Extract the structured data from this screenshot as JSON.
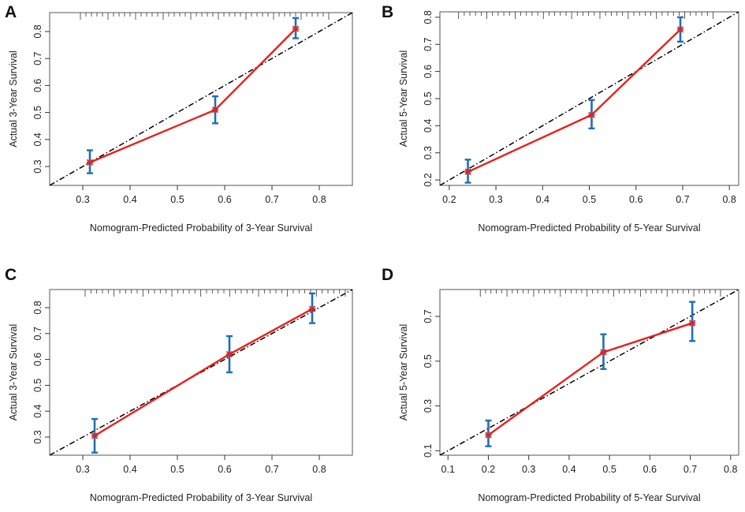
{
  "colors": {
    "fit_line": "#e8201c",
    "marker": "#e8201c",
    "error_bar": "#1f6fb5",
    "ideal_line": "#000000",
    "frame": "#555555"
  },
  "chart_data": [
    {
      "panel": "A",
      "type": "line",
      "title": "",
      "xlabel": "Nomogram-Predicted Probability of 3-Year Survival",
      "ylabel": "Actual 3-Year Survival",
      "xlim": [
        0.23,
        0.87
      ],
      "ylim": [
        0.23,
        0.87
      ],
      "x_ticks": [
        "0.3",
        "0.4",
        "0.5",
        "0.6",
        "0.7",
        "0.8"
      ],
      "y_ticks": [
        "0.3",
        "0.4",
        "0.5",
        "0.6",
        "0.7",
        "0.8"
      ],
      "x_tick_values": [
        0.3,
        0.4,
        0.5,
        0.6,
        0.7,
        0.8
      ],
      "y_tick_values": [
        0.3,
        0.4,
        0.5,
        0.6,
        0.7,
        0.8
      ],
      "ideal_line": true,
      "points": [
        {
          "x": 0.315,
          "y": 0.315,
          "lo": 0.275,
          "hi": 0.36
        },
        {
          "x": 0.58,
          "y": 0.51,
          "lo": 0.46,
          "hi": 0.56
        },
        {
          "x": 0.75,
          "y": 0.81,
          "lo": 0.775,
          "hi": 0.85
        }
      ]
    },
    {
      "panel": "B",
      "type": "line",
      "title": "",
      "xlabel": "Nomogram-Predicted Probability of 5-Year Survival",
      "ylabel": "Actual 5-Year Survival",
      "xlim": [
        0.18,
        0.82
      ],
      "ylim": [
        0.18,
        0.82
      ],
      "x_ticks": [
        "0.2",
        "0.3",
        "0.4",
        "0.5",
        "0.6",
        "0.7",
        "0.8"
      ],
      "y_ticks": [
        "0.2",
        "0.3",
        "0.4",
        "0.5",
        "0.6",
        "0.7",
        "0.8"
      ],
      "x_tick_values": [
        0.2,
        0.3,
        0.4,
        0.5,
        0.6,
        0.7,
        0.8
      ],
      "y_tick_values": [
        0.2,
        0.3,
        0.4,
        0.5,
        0.6,
        0.7,
        0.8
      ],
      "ideal_line": true,
      "points": [
        {
          "x": 0.24,
          "y": 0.23,
          "lo": 0.19,
          "hi": 0.275
        },
        {
          "x": 0.505,
          "y": 0.44,
          "lo": 0.39,
          "hi": 0.495
        },
        {
          "x": 0.695,
          "y": 0.755,
          "lo": 0.71,
          "hi": 0.8
        }
      ]
    },
    {
      "panel": "C",
      "type": "line",
      "title": "",
      "xlabel": "Nomogram-Predicted Probability of 3-Year Survival",
      "ylabel": "Actual 3-Year Survival",
      "xlim": [
        0.23,
        0.87
      ],
      "ylim": [
        0.23,
        0.87
      ],
      "x_ticks": [
        "0.3",
        "0.4",
        "0.5",
        "0.6",
        "0.7",
        "0.8"
      ],
      "y_ticks": [
        "0.3",
        "0.4",
        "0.5",
        "0.6",
        "0.7",
        "0.8"
      ],
      "x_tick_values": [
        0.3,
        0.4,
        0.5,
        0.6,
        0.7,
        0.8
      ],
      "y_tick_values": [
        0.3,
        0.4,
        0.5,
        0.6,
        0.7,
        0.8
      ],
      "ideal_line": true,
      "points": [
        {
          "x": 0.325,
          "y": 0.305,
          "lo": 0.24,
          "hi": 0.37
        },
        {
          "x": 0.61,
          "y": 0.62,
          "lo": 0.55,
          "hi": 0.69
        },
        {
          "x": 0.785,
          "y": 0.795,
          "lo": 0.74,
          "hi": 0.855
        }
      ]
    },
    {
      "panel": "D",
      "type": "line",
      "title": "",
      "xlabel": "Nomogram-Predicted Probability of 5-Year Survival",
      "ylabel": "Actual 5-Year Survival",
      "xlim": [
        0.08,
        0.82
      ],
      "ylim": [
        0.08,
        0.82
      ],
      "x_ticks": [
        "0.1",
        "0.2",
        "0.3",
        "0.4",
        "0.5",
        "0.6",
        "0.7",
        "0.8"
      ],
      "y_ticks": [
        "0.1",
        "0.3",
        "0.5",
        "0.7"
      ],
      "x_tick_values": [
        0.1,
        0.2,
        0.3,
        0.4,
        0.5,
        0.6,
        0.7,
        0.8
      ],
      "y_tick_values": [
        0.1,
        0.3,
        0.5,
        0.7
      ],
      "ideal_line": true,
      "points": [
        {
          "x": 0.2,
          "y": 0.17,
          "lo": 0.12,
          "hi": 0.235
        },
        {
          "x": 0.485,
          "y": 0.54,
          "lo": 0.465,
          "hi": 0.62
        },
        {
          "x": 0.705,
          "y": 0.67,
          "lo": 0.59,
          "hi": 0.765
        }
      ]
    }
  ]
}
